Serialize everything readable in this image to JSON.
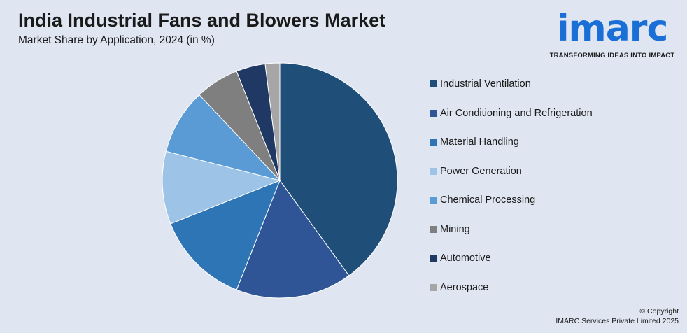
{
  "header": {
    "title": "India Industrial Fans and Blowers Market",
    "subtitle": "Market Share by Application, 2024 (in %)"
  },
  "logo": {
    "word": "imarc",
    "tagline": "TRANSFORMING IDEAS INTO IMPACT"
  },
  "footer": {
    "copyright_line1": "© Copyright",
    "copyright_line2": "IMARC Services Private Limited 2025"
  },
  "chart_data": {
    "type": "pie",
    "title": "India Industrial Fans and Blowers Market",
    "subtitle": "Market Share by Application, 2024 (in %)",
    "legend_position": "right",
    "categories": [
      "Industrial Ventilation",
      "Air Conditioning and Refrigeration",
      "Material Handling",
      "Power Generation",
      "Chemical Processing",
      "Mining",
      "Automotive",
      "Aerospace"
    ],
    "values": [
      40,
      16,
      13,
      10,
      9,
      6,
      4,
      2
    ],
    "colors": [
      "#1f4e79",
      "#2f5597",
      "#2e75b6",
      "#9dc3e6",
      "#5b9bd5",
      "#7f7f7f",
      "#203864",
      "#a6a6a6"
    ]
  }
}
